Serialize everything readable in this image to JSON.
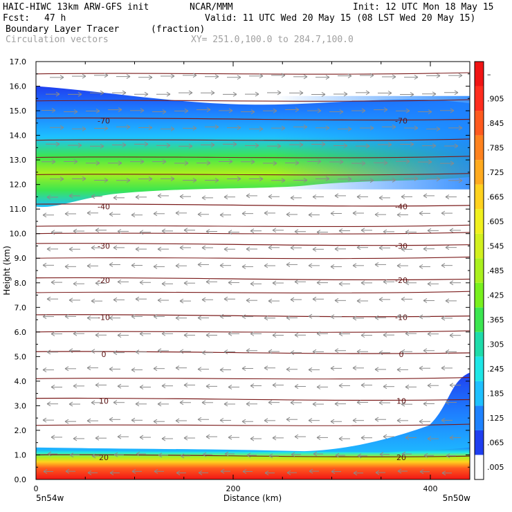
{
  "header": {
    "model": "HAIC-HIWC 13km ARW-GFS init",
    "org": "NCAR/MMM",
    "init": "Init: 12 UTC Mon 18 May 15",
    "fcst_label": "Fcst:",
    "fcst_value": "47 h",
    "valid": "Valid: 11 UTC Wed 20 May 15 (08 LST Wed 20 May 15)",
    "field": "Boundary Layer Tracer",
    "units": "(fraction)",
    "vectors": "Circulation vectors",
    "xy": "XY= 251.0,100.0 to 284.7,100.0"
  },
  "chart_data": {
    "type": "heatmap",
    "xlabel": "Distance (km)",
    "ylabel": "Height (km)",
    "xlim": [
      0,
      440
    ],
    "ylim": [
      0,
      17
    ],
    "x_ticks": [
      {
        "v": 0,
        "label": "0"
      },
      {
        "v": 200,
        "label": "200"
      },
      {
        "v": 400,
        "label": "400"
      }
    ],
    "x_end_labels": {
      "left": "5n54w",
      "right": "5n50w"
    },
    "y_ticks": [
      "0.0",
      "1.0",
      "2.0",
      "3.0",
      "4.0",
      "5.0",
      "6.0",
      "7.0",
      "8.0",
      "9.0",
      "10.0",
      "11.0",
      "12.0",
      "13.0",
      "14.0",
      "15.0",
      "16.0",
      "17.0"
    ],
    "colorbar": {
      "labels": [
        ".005",
        ".065",
        ".125",
        ".185",
        ".245",
        ".305",
        ".365",
        ".425",
        ".485",
        ".545",
        ".605",
        ".665",
        ".725",
        ".785",
        ".845",
        ".905",
        "–"
      ],
      "colors": [
        "#ffffff",
        "#1f3ff0",
        "#1e82ff",
        "#1ec0ff",
        "#1ee6e6",
        "#1edcaa",
        "#3ce650",
        "#78f01e",
        "#aaf01e",
        "#d2f01e",
        "#f0f01e",
        "#ffd21e",
        "#ffaa1e",
        "#ff821e",
        "#ff5a1e",
        "#ff2d1e",
        "#f01414"
      ]
    },
    "isotherms": [
      {
        "label": "-70",
        "h": 14.6
      },
      {
        "label": "-40",
        "h": 11.1
      },
      {
        "label": "-30",
        "h": 9.5
      },
      {
        "label": "-20",
        "h": 8.1
      },
      {
        "label": "-10",
        "h": 6.6
      },
      {
        "label": "0",
        "h": 5.1
      },
      {
        "label": "10",
        "h": 3.2
      },
      {
        "label": "20",
        "h": 0.9
      }
    ]
  }
}
